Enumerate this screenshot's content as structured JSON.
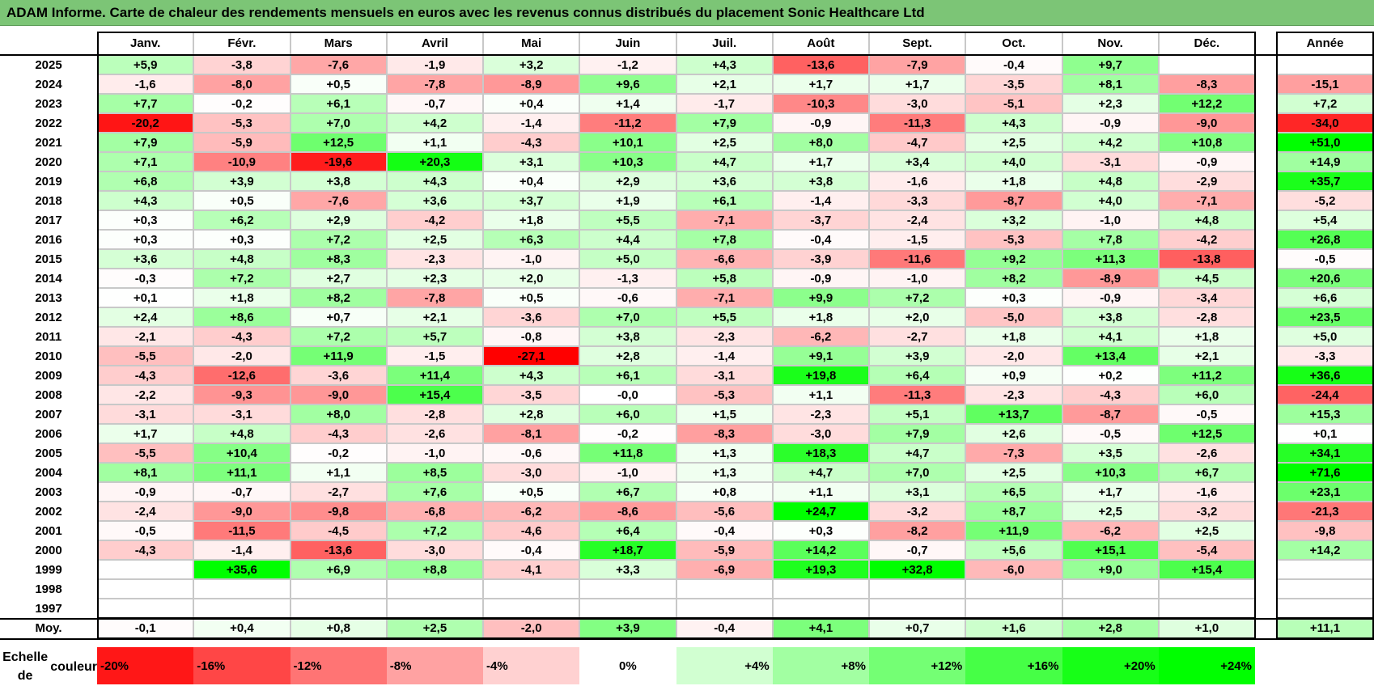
{
  "title": "ADAM Informe. Carte de chaleur des rendements mensuels en euros avec les revenus connus distribués du placement Sonic Healthcare Ltd",
  "chart_data": {
    "type": "heatmap",
    "title": "ADAM Informe. Carte de chaleur des rendements mensuels en euros avec les revenus connus distribués du placement Sonic Healthcare Ltd",
    "months": [
      "Janv.",
      "Févr.",
      "Mars",
      "Avril",
      "Mai",
      "Juin",
      "Juil.",
      "Août",
      "Sept.",
      "Oct.",
      "Nov.",
      "Déc."
    ],
    "year_header": "Année",
    "rows": [
      {
        "year": "2025",
        "values": [
          "+5,9",
          "-3,8",
          "-7,6",
          "-1,9",
          "+3,2",
          "-1,2",
          "+4,3",
          "-13,6",
          "-7,9",
          "-0,4",
          "+9,7",
          ""
        ],
        "annual": ""
      },
      {
        "year": "2024",
        "values": [
          "-1,6",
          "-8,0",
          "+0,5",
          "-7,8",
          "-8,9",
          "+9,6",
          "+2,1",
          "+1,7",
          "+1,7",
          "-3,5",
          "+8,1",
          "-8,3"
        ],
        "annual": "-15,1"
      },
      {
        "year": "2023",
        "values": [
          "+7,7",
          "-0,2",
          "+6,1",
          "-0,7",
          "+0,4",
          "+1,4",
          "-1,7",
          "-10,3",
          "-3,0",
          "-5,1",
          "+2,3",
          "+12,2"
        ],
        "annual": "+7,2"
      },
      {
        "year": "2022",
        "values": [
          "-20,2",
          "-5,3",
          "+7,0",
          "+4,2",
          "-1,4",
          "-11,2",
          "+7,9",
          "-0,9",
          "-11,3",
          "+4,3",
          "-0,9",
          "-9,0"
        ],
        "annual": "-34,0"
      },
      {
        "year": "2021",
        "values": [
          "+7,9",
          "-5,9",
          "+12,5",
          "+1,1",
          "-4,3",
          "+10,1",
          "+2,5",
          "+8,0",
          "-4,7",
          "+2,5",
          "+4,2",
          "+10,8"
        ],
        "annual": "+51,0"
      },
      {
        "year": "2020",
        "values": [
          "+7,1",
          "-10,9",
          "-19,6",
          "+20,3",
          "+3,1",
          "+10,3",
          "+4,7",
          "+1,7",
          "+3,4",
          "+4,0",
          "-3,1",
          "-0,9"
        ],
        "annual": "+14,9"
      },
      {
        "year": "2019",
        "values": [
          "+6,8",
          "+3,9",
          "+3,8",
          "+4,3",
          "+0,4",
          "+2,9",
          "+3,6",
          "+3,8",
          "-1,6",
          "+1,8",
          "+4,8",
          "-2,9"
        ],
        "annual": "+35,7"
      },
      {
        "year": "2018",
        "values": [
          "+4,3",
          "+0,5",
          "-7,6",
          "+3,6",
          "+3,7",
          "+1,9",
          "+6,1",
          "-1,4",
          "-3,3",
          "-8,7",
          "+4,0",
          "-7,1"
        ],
        "annual": "-5,2"
      },
      {
        "year": "2017",
        "values": [
          "+0,3",
          "+6,2",
          "+2,9",
          "-4,2",
          "+1,8",
          "+5,5",
          "-7,1",
          "-3,7",
          "-2,4",
          "+3,2",
          "-1,0",
          "+4,8"
        ],
        "annual": "+5,4"
      },
      {
        "year": "2016",
        "values": [
          "+0,3",
          "+0,3",
          "+7,2",
          "+2,5",
          "+6,3",
          "+4,4",
          "+7,8",
          "-0,4",
          "-1,5",
          "-5,3",
          "+7,8",
          "-4,2"
        ],
        "annual": "+26,8"
      },
      {
        "year": "2015",
        "values": [
          "+3,6",
          "+4,8",
          "+8,3",
          "-2,3",
          "-1,0",
          "+5,0",
          "-6,6",
          "-3,9",
          "-11,6",
          "+9,2",
          "+11,3",
          "-13,8"
        ],
        "annual": "-0,5"
      },
      {
        "year": "2014",
        "values": [
          "-0,3",
          "+7,2",
          "+2,7",
          "+2,3",
          "+2,0",
          "-1,3",
          "+5,8",
          "-0,9",
          "-1,0",
          "+8,2",
          "-8,9",
          "+4,5"
        ],
        "annual": "+20,6"
      },
      {
        "year": "2013",
        "values": [
          "+0,1",
          "+1,8",
          "+8,2",
          "-7,8",
          "+0,5",
          "-0,6",
          "-7,1",
          "+9,9",
          "+7,2",
          "+0,3",
          "-0,9",
          "-3,4"
        ],
        "annual": "+6,6"
      },
      {
        "year": "2012",
        "values": [
          "+2,4",
          "+8,6",
          "+0,7",
          "+2,1",
          "-3,6",
          "+7,0",
          "+5,5",
          "+1,8",
          "+2,0",
          "-5,0",
          "+3,8",
          "-2,8"
        ],
        "annual": "+23,5"
      },
      {
        "year": "2011",
        "values": [
          "-2,1",
          "-4,3",
          "+7,2",
          "+5,7",
          "-0,8",
          "+3,8",
          "-2,3",
          "-6,2",
          "-2,7",
          "+1,8",
          "+4,1",
          "+1,8"
        ],
        "annual": "+5,0"
      },
      {
        "year": "2010",
        "values": [
          "-5,5",
          "-2,0",
          "+11,9",
          "-1,5",
          "-27,1",
          "+2,8",
          "-1,4",
          "+9,1",
          "+3,9",
          "-2,0",
          "+13,4",
          "+2,1"
        ],
        "annual": "-3,3"
      },
      {
        "year": "2009",
        "values": [
          "-4,3",
          "-12,6",
          "-3,6",
          "+11,4",
          "+4,3",
          "+6,1",
          "-3,1",
          "+19,8",
          "+6,4",
          "+0,9",
          "+0,2",
          "+11,2"
        ],
        "annual": "+36,6"
      },
      {
        "year": "2008",
        "values": [
          "-2,2",
          "-9,3",
          "-9,0",
          "+15,4",
          "-3,5",
          "-0,0",
          "-5,3",
          "+1,1",
          "-11,3",
          "-2,3",
          "-4,3",
          "+6,0"
        ],
        "annual": "-24,4"
      },
      {
        "year": "2007",
        "values": [
          "-3,1",
          "-3,1",
          "+8,0",
          "-2,8",
          "+2,8",
          "+6,0",
          "+1,5",
          "-2,3",
          "+5,1",
          "+13,7",
          "-8,7",
          "-0,5"
        ],
        "annual": "+15,3"
      },
      {
        "year": "2006",
        "values": [
          "+1,7",
          "+4,8",
          "-4,3",
          "-2,6",
          "-8,1",
          "-0,2",
          "-8,3",
          "-3,0",
          "+7,9",
          "+2,6",
          "-0,5",
          "+12,5"
        ],
        "annual": "+0,1"
      },
      {
        "year": "2005",
        "values": [
          "-5,5",
          "+10,4",
          "-0,2",
          "-1,0",
          "-0,6",
          "+11,8",
          "+1,3",
          "+18,3",
          "+4,7",
          "-7,3",
          "+3,5",
          "-2,6"
        ],
        "annual": "+34,1"
      },
      {
        "year": "2004",
        "values": [
          "+8,1",
          "+11,1",
          "+1,1",
          "+8,5",
          "-3,0",
          "-1,0",
          "+1,3",
          "+4,7",
          "+7,0",
          "+2,5",
          "+10,3",
          "+6,7"
        ],
        "annual": "+71,6"
      },
      {
        "year": "2003",
        "values": [
          "-0,9",
          "-0,7",
          "-2,7",
          "+7,6",
          "+0,5",
          "+6,7",
          "+0,8",
          "+1,1",
          "+3,1",
          "+6,5",
          "+1,7",
          "-1,6"
        ],
        "annual": "+23,1"
      },
      {
        "year": "2002",
        "values": [
          "-2,4",
          "-9,0",
          "-9,8",
          "-6,8",
          "-6,2",
          "-8,6",
          "-5,6",
          "+24,7",
          "-3,2",
          "+8,7",
          "+2,5",
          "-3,2"
        ],
        "annual": "-21,3"
      },
      {
        "year": "2001",
        "values": [
          "-0,5",
          "-11,5",
          "-4,5",
          "+7,2",
          "-4,6",
          "+6,4",
          "-0,4",
          "+0,3",
          "-8,2",
          "+11,9",
          "-6,2",
          "+2,5"
        ],
        "annual": "-9,8"
      },
      {
        "year": "2000",
        "values": [
          "-4,3",
          "-1,4",
          "-13,6",
          "-3,0",
          "-0,4",
          "+18,7",
          "-5,9",
          "+14,2",
          "-0,7",
          "+5,6",
          "+15,1",
          "-5,4"
        ],
        "annual": "+14,2"
      },
      {
        "year": "1999",
        "values": [
          "",
          "+35,6",
          "+6,9",
          "+8,8",
          "-4,1",
          "+3,3",
          "-6,9",
          "+19,3",
          "+32,8",
          "-6,0",
          "+9,0",
          "+15,4"
        ],
        "annual": ""
      },
      {
        "year": "1998",
        "values": [
          "",
          "",
          "",
          "",
          "",
          "",
          "",
          "",
          "",
          "",
          "",
          ""
        ],
        "annual": ""
      },
      {
        "year": "1997",
        "values": [
          "",
          "",
          "",
          "",
          "",
          "",
          "",
          "",
          "",
          "",
          "",
          ""
        ],
        "annual": ""
      }
    ],
    "average": {
      "label": "Moy.",
      "values": [
        "-0,1",
        "+0,4",
        "+0,8",
        "+2,5",
        "-2,0",
        "+3,9",
        "-0,4",
        "+4,1",
        "+0,7",
        "+1,6",
        "+2,8",
        "+1,0"
      ],
      "annual": "+11,1"
    },
    "scale": {
      "label_line1": "Echelle de",
      "label_line2": "couleur",
      "steps": [
        "-20%",
        "-16%",
        "-12%",
        "-8%",
        "-4%",
        "0%",
        "+4%",
        "+8%",
        "+12%",
        "+16%",
        "+20%",
        "+24%"
      ]
    },
    "colors": {
      "title_bg": "#7cc576",
      "negative_max": "#ff0000",
      "neutral": "#ffffff",
      "positive_max": "#00ff00"
    }
  }
}
